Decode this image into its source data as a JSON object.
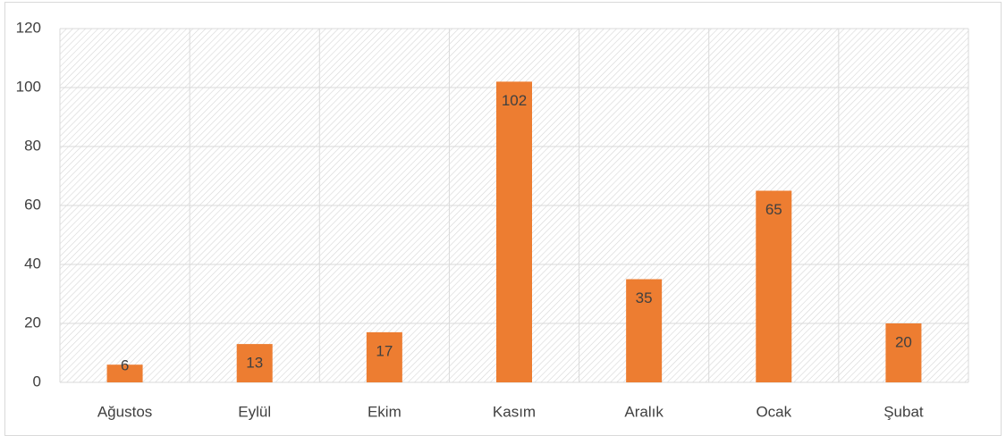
{
  "chart_data": {
    "type": "bar",
    "categories": [
      "Ağustos",
      "Eylül",
      "Ekim",
      "Kasım",
      "Aralık",
      "Ocak",
      "Şubat"
    ],
    "values": [
      6,
      13,
      17,
      102,
      35,
      65,
      20
    ],
    "color": "#ed7d31",
    "ylim": [
      0,
      120
    ],
    "yticks": [
      0,
      20,
      40,
      60,
      80,
      100,
      120
    ],
    "grid": true
  }
}
